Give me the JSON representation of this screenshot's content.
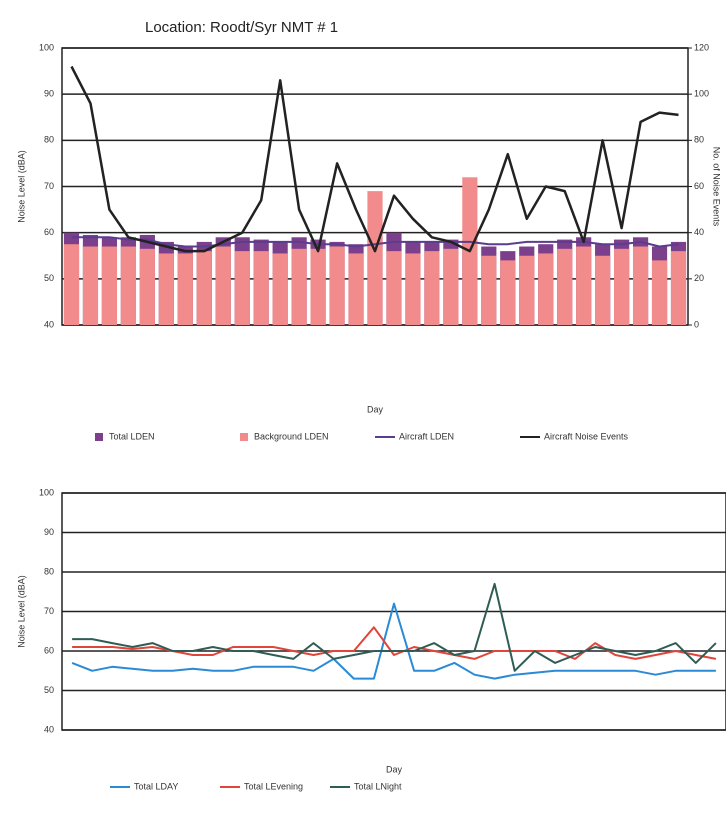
{
  "chart_data": [
    {
      "type": "bar",
      "title": "Location: Roodt/Syr NMT # 1",
      "ylabel": "Noise Level (dBA)",
      "y2label": "No. of Noise Events",
      "xlabel": "Day",
      "categories": [
        null,
        null,
        null,
        null,
        null,
        null,
        null,
        null,
        null,
        null,
        null,
        null,
        null,
        null,
        null,
        null,
        null,
        null,
        null,
        null,
        null,
        null,
        null,
        null,
        null,
        null,
        null,
        null,
        null,
        null,
        null,
        null,
        null
      ],
      "ylim": [
        40,
        100
      ],
      "yticks": [
        40,
        50,
        60,
        70,
        80,
        90,
        100
      ],
      "y2lim": [
        0,
        120
      ],
      "y2ticks": [
        0,
        20,
        40,
        60,
        80,
        100,
        120
      ],
      "grid": true,
      "series": [
        {
          "name": "Total LDEN",
          "type": "bar",
          "color": "#7b3f8c",
          "values": [
            60,
            59.5,
            59,
            59,
            59.5,
            58,
            57,
            58,
            59,
            59,
            58.5,
            58,
            59,
            58.5,
            58,
            57.5,
            59,
            60,
            58,
            58,
            58.5,
            58,
            57,
            56,
            57,
            57.5,
            58.5,
            59,
            57.5,
            58.5,
            59,
            57,
            58
          ]
        },
        {
          "name": "Background LDEN",
          "type": "bar",
          "color": "#f28b8b",
          "values": [
            57.5,
            57,
            57,
            57,
            56.5,
            55.5,
            55.5,
            56,
            57,
            56,
            56,
            55.5,
            56.5,
            56.5,
            57,
            55.5,
            69,
            56,
            55.5,
            56,
            56.5,
            72,
            55,
            54,
            55,
            55.5,
            56.5,
            57,
            55,
            56.5,
            57,
            54,
            56
          ]
        },
        {
          "name": "Aircraft LDEN",
          "type": "line",
          "color": "#5b3d8f",
          "values": [
            59,
            59,
            59,
            58.5,
            58.5,
            57.5,
            57,
            57,
            57.5,
            58,
            58,
            58,
            58,
            57.5,
            57.5,
            57,
            57.5,
            58,
            58,
            58,
            58,
            58,
            57.5,
            57.5,
            58,
            58,
            58,
            58,
            57.5,
            57.5,
            58,
            57,
            57.5
          ]
        },
        {
          "name": "Aircraft Noise Events",
          "type": "line",
          "axis": "y2",
          "color": "#222222",
          "values": [
            112,
            96,
            50,
            38,
            36,
            34,
            32,
            32,
            36,
            40,
            54,
            106,
            50,
            32,
            70,
            50,
            32,
            56,
            46,
            38,
            36,
            32,
            50,
            74,
            46,
            60,
            58,
            36,
            80,
            42,
            88,
            92,
            91
          ]
        }
      ]
    },
    {
      "type": "line",
      "ylabel": "Noise Level (dBA)",
      "xlabel": "Day",
      "categories": [
        null,
        null,
        null,
        null,
        null,
        null,
        null,
        null,
        null,
        null,
        null,
        null,
        null,
        null,
        null,
        null,
        null,
        null,
        null,
        null,
        null,
        null,
        null,
        null,
        null,
        null,
        null,
        null,
        null,
        null,
        null,
        null,
        null
      ],
      "ylim": [
        40,
        100
      ],
      "yticks": [
        40,
        50,
        60,
        70,
        80,
        90,
        100
      ],
      "grid": true,
      "series": [
        {
          "name": "Total LDAY",
          "color": "#2a8ad6",
          "values": [
            57,
            55,
            56,
            55.5,
            55,
            55,
            55.5,
            55,
            55,
            56,
            56,
            56,
            55,
            58,
            53,
            53,
            72,
            55,
            55,
            57,
            54,
            53,
            54,
            54.5,
            55,
            55,
            55,
            55,
            55,
            54,
            55,
            55,
            55
          ]
        },
        {
          "name": "Total LEvening",
          "color": "#e0453a",
          "values": [
            61,
            61,
            61,
            60.5,
            61,
            60,
            59,
            59,
            61,
            61,
            61,
            60,
            59,
            60,
            60,
            66,
            59,
            61,
            60,
            59,
            58,
            60,
            60,
            60,
            60,
            58,
            62,
            59,
            58,
            59,
            60,
            59,
            58
          ]
        },
        {
          "name": "Total LNight",
          "color": "#2f5d55",
          "values": [
            63,
            63,
            62,
            61,
            62,
            60,
            60,
            61,
            60,
            60,
            59,
            58,
            62,
            58,
            59,
            60,
            60,
            60,
            62,
            59,
            60,
            77,
            55,
            60,
            57,
            59,
            61,
            60,
            59,
            60,
            62,
            57,
            62
          ]
        }
      ]
    }
  ]
}
